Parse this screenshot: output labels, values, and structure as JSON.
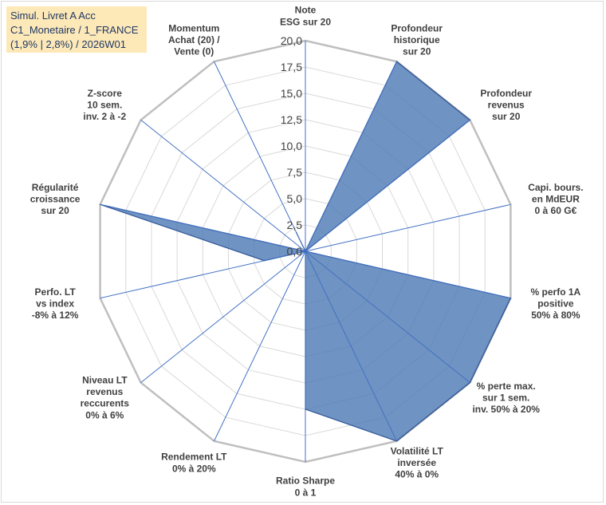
{
  "title_box": {
    "line1": "Simul. Livret A Acc",
    "line2": "C1_Monetaire / 1_FRANCE",
    "line3": "(1,9% | 2,8%) / 2026W01"
  },
  "colors": {
    "fill": "#4f7bb5",
    "stroke": "#2f5597",
    "grid": "#d9d9d9",
    "spoke": "#4472c4",
    "title_bg": "#fde8b8"
  },
  "chart_data": {
    "type": "radar",
    "r_range": [
      0,
      20
    ],
    "r_step": 2.5,
    "tick_labels": [
      "0,0",
      "2,5",
      "5,0",
      "7,5",
      "10,0",
      "12,5",
      "15,0",
      "17,5",
      "20,0"
    ],
    "grid": true,
    "legend": "none",
    "axes": [
      [
        "Note",
        "ESG sur 20"
      ],
      [
        "Profondeur",
        "historique",
        "sur 20"
      ],
      [
        "Profondeur",
        "revenus",
        "sur 20"
      ],
      [
        "Capi. bours.",
        "en MdEUR",
        "0 à 60 G€"
      ],
      [
        "% perfo 1A",
        "positive",
        "50% à 80%"
      ],
      [
        "% perte max.",
        "sur 1 sem.",
        "inv. 50% à 20%"
      ],
      [
        "Volatilité LT",
        "inversée",
        "40% à 0%"
      ],
      [
        "Ratio Sharpe",
        "0 à 1"
      ],
      [
        "Rendement LT",
        "0% à 20%"
      ],
      [
        "Niveau LT",
        "revenus",
        "reccurents",
        "0% à 6%"
      ],
      [
        "Perfo. LT",
        "vs index",
        "-8% à 12%"
      ],
      [
        "Régularité",
        "croissance",
        "sur 20"
      ],
      [
        "Z-score",
        "10 sem.",
        "inv. 2 à -2"
      ],
      [
        "Momentum",
        "Achat (20) /",
        "Vente (0)"
      ]
    ],
    "values": [
      0,
      20,
      20,
      0,
      20,
      20,
      20,
      15,
      0,
      0,
      4,
      20,
      0,
      2
    ]
  }
}
